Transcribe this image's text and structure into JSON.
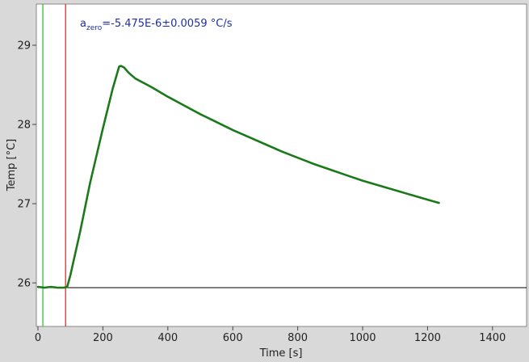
{
  "chart_data": {
    "type": "line",
    "xlabel": "Time [s]",
    "ylabel": "Temp [°C]",
    "xlim": [
      -5,
      1505
    ],
    "ylim": [
      25.45,
      29.52
    ],
    "xticks": [
      0,
      200,
      400,
      600,
      800,
      1000,
      1200,
      1400
    ],
    "yticks": [
      26,
      27,
      28,
      29
    ],
    "annotation": {
      "prefix": "a",
      "subscript": "zero",
      "text": "=-5.475E-6±0.0059 °C/s"
    },
    "vertical_markers": [
      {
        "x": 15,
        "color": "#22bb22"
      },
      {
        "x": 85,
        "color": "#cc2222"
      }
    ],
    "baseline": {
      "x": [
        0,
        1505
      ],
      "y": [
        25.94,
        25.94
      ],
      "color": "#000000"
    },
    "series": [
      {
        "color": "#1a7a1a",
        "x": [
          0,
          20,
          40,
          60,
          80,
          90,
          100,
          130,
          160,
          200,
          230,
          250,
          255,
          265,
          280,
          300,
          350,
          400,
          450,
          500,
          550,
          600,
          650,
          700,
          750,
          800,
          850,
          900,
          950,
          1000,
          1050,
          1100,
          1150,
          1200,
          1235
        ],
        "y": [
          25.95,
          25.94,
          25.95,
          25.94,
          25.94,
          25.95,
          26.1,
          26.65,
          27.25,
          27.95,
          28.45,
          28.73,
          28.74,
          28.72,
          28.65,
          28.58,
          28.47,
          28.35,
          28.24,
          28.13,
          28.03,
          27.93,
          27.84,
          27.75,
          27.66,
          27.58,
          27.5,
          27.43,
          27.36,
          27.29,
          27.23,
          27.17,
          27.11,
          27.05,
          27.01
        ]
      }
    ]
  }
}
